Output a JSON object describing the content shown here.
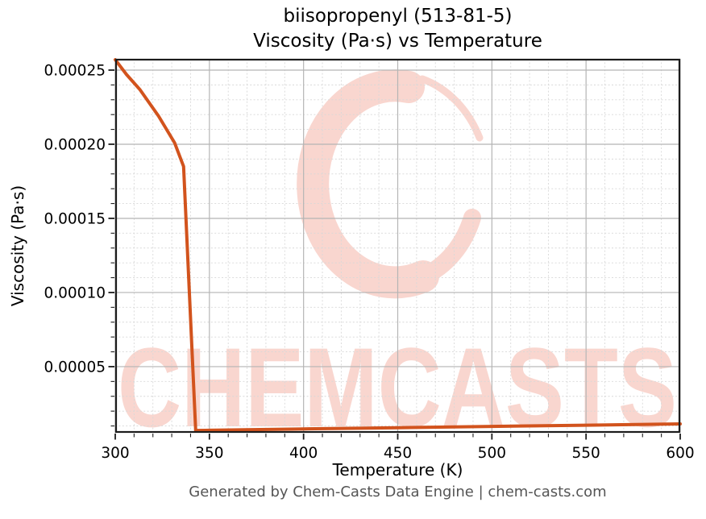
{
  "title": {
    "line1": "biisopropenyl (513-81-5)",
    "line2": "Viscosity (Pa·s) vs Temperature"
  },
  "footer": "Generated by Chem-Casts Data Engine | chem-casts.com",
  "watermark": {
    "text": "CHEMCASTS",
    "logo": "chemcasts-brush-ring-logo",
    "color": "#f9d6cf"
  },
  "colors": {
    "line": "#d2531d",
    "grid_major": "#b5b5b5",
    "grid_minor": "#d8d8d8",
    "spine": "#1c1c1c",
    "tick": "#1c1c1c",
    "tick_label": "#000000",
    "footer_text": "#555555",
    "watermark": "#f9d6cf"
  },
  "chart_data": {
    "type": "line",
    "title": "biisopropenyl (513-81-5) — Viscosity (Pa·s) vs Temperature",
    "xlabel": "Temperature (K)",
    "ylabel": "Viscosity (Pa·s)",
    "xlim": [
      300,
      600
    ],
    "ylim": [
      5.4e-06,
      0.0002576
    ],
    "x_ticks": [
      300,
      350,
      400,
      450,
      500,
      550,
      600
    ],
    "x_tick_labels": [
      "300",
      "350",
      "400",
      "450",
      "500",
      "550",
      "600"
    ],
    "y_ticks": [
      5e-05,
      0.0001,
      0.00015,
      0.0002,
      0.00025
    ],
    "y_tick_labels": [
      "0.00005",
      "0.00010",
      "0.00015",
      "0.00020",
      "0.00025"
    ],
    "x_minor_step": 10,
    "y_minor_step": 1e-05,
    "grid": true,
    "legend": false,
    "series": [
      {
        "name": "viscosity",
        "x": [
          300,
          306,
          313,
          323,
          331.5,
          336.3,
          342.7,
          350,
          400,
          450,
          500,
          550,
          600
        ],
        "y": [
          0.000257,
          0.000247,
          0.000237,
          0.000219,
          0.000201,
          0.000185,
          7e-06,
          7.1e-06,
          8e-06,
          8.8e-06,
          9.7e-06,
          1.05e-05,
          1.14e-05
        ]
      }
    ]
  }
}
